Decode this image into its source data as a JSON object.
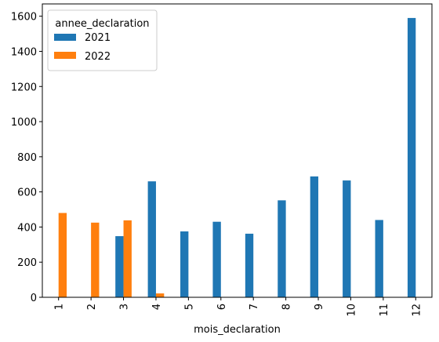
{
  "chart_data": {
    "type": "bar",
    "title": "",
    "xlabel": "mois_declaration",
    "ylabel": "",
    "categories": [
      "1",
      "2",
      "3",
      "4",
      "5",
      "6",
      "7",
      "8",
      "9",
      "10",
      "11",
      "12"
    ],
    "series": [
      {
        "name": "2021",
        "color": "#1f77b4",
        "values": [
          0,
          0,
          348,
          660,
          375,
          430,
          362,
          552,
          688,
          665,
          440,
          1590
        ]
      },
      {
        "name": "2022",
        "color": "#ff7f0e",
        "values": [
          480,
          425,
          438,
          22,
          0,
          0,
          0,
          0,
          0,
          0,
          0,
          0
        ]
      }
    ],
    "ylim": [
      0,
      1670
    ],
    "yticks": [
      0,
      200,
      400,
      600,
      800,
      1000,
      1200,
      1400,
      1600
    ],
    "grid": false,
    "legend": {
      "title": "annee_declaration",
      "placement": "top-left"
    }
  }
}
